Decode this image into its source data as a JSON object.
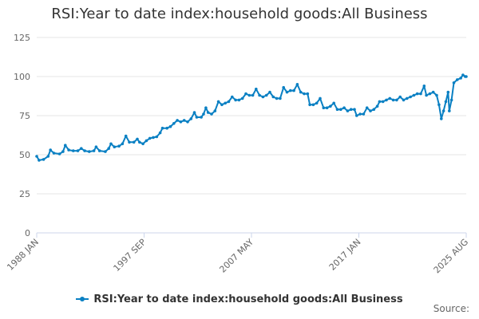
{
  "chart_data": {
    "type": "line",
    "title": "RSI:Year to date index:household goods:All Business",
    "xlabel": "",
    "ylabel": "",
    "ylim": [
      0,
      125
    ],
    "y_ticks": [
      "0",
      "25",
      "50",
      "75",
      "100",
      "125"
    ],
    "x_ticks": [
      "1988 JAN",
      "1997 SEP",
      "2007 MAY",
      "2017 JAN",
      "2025 AUG"
    ],
    "x_range": [
      1988.0,
      2025.583
    ],
    "grid": "horizontal",
    "legend_position": "bottom",
    "series": [
      {
        "name": "RSI:Year to date index:household goods:All Business",
        "color": "#0a80c3",
        "points": [
          [
            1988.0,
            49
          ],
          [
            1988.2,
            46.5
          ],
          [
            1988.6,
            47
          ],
          [
            1989.0,
            49
          ],
          [
            1989.2,
            53
          ],
          [
            1989.5,
            51
          ],
          [
            1990.0,
            50.5
          ],
          [
            1990.3,
            52
          ],
          [
            1990.5,
            56
          ],
          [
            1990.8,
            53
          ],
          [
            1991.2,
            52.5
          ],
          [
            1991.6,
            52.5
          ],
          [
            1991.9,
            54
          ],
          [
            1992.2,
            52.5
          ],
          [
            1992.6,
            52
          ],
          [
            1993.0,
            52.5
          ],
          [
            1993.2,
            55
          ],
          [
            1993.5,
            52.5
          ],
          [
            1994.0,
            52
          ],
          [
            1994.3,
            54
          ],
          [
            1994.5,
            57
          ],
          [
            1994.8,
            55
          ],
          [
            1995.2,
            55.5
          ],
          [
            1995.5,
            57
          ],
          [
            1995.8,
            62
          ],
          [
            1996.1,
            58
          ],
          [
            1996.5,
            58
          ],
          [
            1996.8,
            60
          ],
          [
            1997.0,
            58
          ],
          [
            1997.3,
            57
          ],
          [
            1997.6,
            59
          ],
          [
            1997.9,
            60.5
          ],
          [
            1998.2,
            61
          ],
          [
            1998.5,
            61.5
          ],
          [
            1998.8,
            64
          ],
          [
            1999.0,
            67
          ],
          [
            1999.4,
            67
          ],
          [
            1999.7,
            68
          ],
          [
            2000.0,
            70
          ],
          [
            2000.3,
            72
          ],
          [
            2000.6,
            71
          ],
          [
            2000.9,
            72
          ],
          [
            2001.2,
            71
          ],
          [
            2001.5,
            73
          ],
          [
            2001.8,
            77
          ],
          [
            2002.0,
            74
          ],
          [
            2002.4,
            74
          ],
          [
            2002.6,
            76
          ],
          [
            2002.8,
            80
          ],
          [
            2003.0,
            77
          ],
          [
            2003.3,
            76
          ],
          [
            2003.6,
            78
          ],
          [
            2003.9,
            84
          ],
          [
            2004.2,
            82
          ],
          [
            2004.5,
            83
          ],
          [
            2004.8,
            84
          ],
          [
            2005.1,
            87
          ],
          [
            2005.4,
            85
          ],
          [
            2005.7,
            85
          ],
          [
            2006.0,
            86
          ],
          [
            2006.3,
            89
          ],
          [
            2006.6,
            88
          ],
          [
            2006.9,
            88
          ],
          [
            2007.2,
            92
          ],
          [
            2007.5,
            88
          ],
          [
            2007.8,
            87
          ],
          [
            2008.1,
            88
          ],
          [
            2008.4,
            90
          ],
          [
            2008.7,
            87
          ],
          [
            2009.0,
            86
          ],
          [
            2009.3,
            86
          ],
          [
            2009.6,
            93
          ],
          [
            2009.9,
            90
          ],
          [
            2010.2,
            91
          ],
          [
            2010.5,
            91
          ],
          [
            2010.8,
            95
          ],
          [
            2011.1,
            90
          ],
          [
            2011.4,
            89
          ],
          [
            2011.7,
            89
          ],
          [
            2011.9,
            82
          ],
          [
            2012.2,
            82
          ],
          [
            2012.5,
            83
          ],
          [
            2012.8,
            86
          ],
          [
            2013.1,
            80
          ],
          [
            2013.4,
            80
          ],
          [
            2013.7,
            81
          ],
          [
            2014.0,
            83
          ],
          [
            2014.3,
            79
          ],
          [
            2014.6,
            79
          ],
          [
            2014.9,
            80
          ],
          [
            2015.2,
            78
          ],
          [
            2015.5,
            79
          ],
          [
            2015.8,
            79
          ],
          [
            2016.0,
            75
          ],
          [
            2016.3,
            76
          ],
          [
            2016.6,
            76
          ],
          [
            2016.9,
            80
          ],
          [
            2017.2,
            78
          ],
          [
            2017.5,
            79
          ],
          [
            2017.8,
            81
          ],
          [
            2018.0,
            84
          ],
          [
            2018.3,
            84
          ],
          [
            2018.6,
            85
          ],
          [
            2018.9,
            86
          ],
          [
            2019.2,
            85
          ],
          [
            2019.5,
            85
          ],
          [
            2019.8,
            87
          ],
          [
            2020.1,
            85
          ],
          [
            2020.4,
            86
          ],
          [
            2020.7,
            87
          ],
          [
            2021.0,
            88
          ],
          [
            2021.3,
            89
          ],
          [
            2021.6,
            89
          ],
          [
            2021.9,
            94
          ],
          [
            2022.1,
            88
          ],
          [
            2022.4,
            89
          ],
          [
            2022.7,
            90
          ],
          [
            2023.0,
            88
          ],
          [
            2023.2,
            82
          ],
          [
            2023.4,
            73
          ],
          [
            2023.6,
            78
          ],
          [
            2023.8,
            84
          ],
          [
            2024.0,
            90
          ],
          [
            2024.1,
            78
          ],
          [
            2024.3,
            85
          ],
          [
            2024.5,
            96
          ],
          [
            2024.8,
            98
          ],
          [
            2025.1,
            99
          ],
          [
            2025.3,
            101
          ],
          [
            2025.5,
            100
          ],
          [
            2025.583,
            100
          ]
        ]
      }
    ],
    "source_label": "Source:"
  }
}
